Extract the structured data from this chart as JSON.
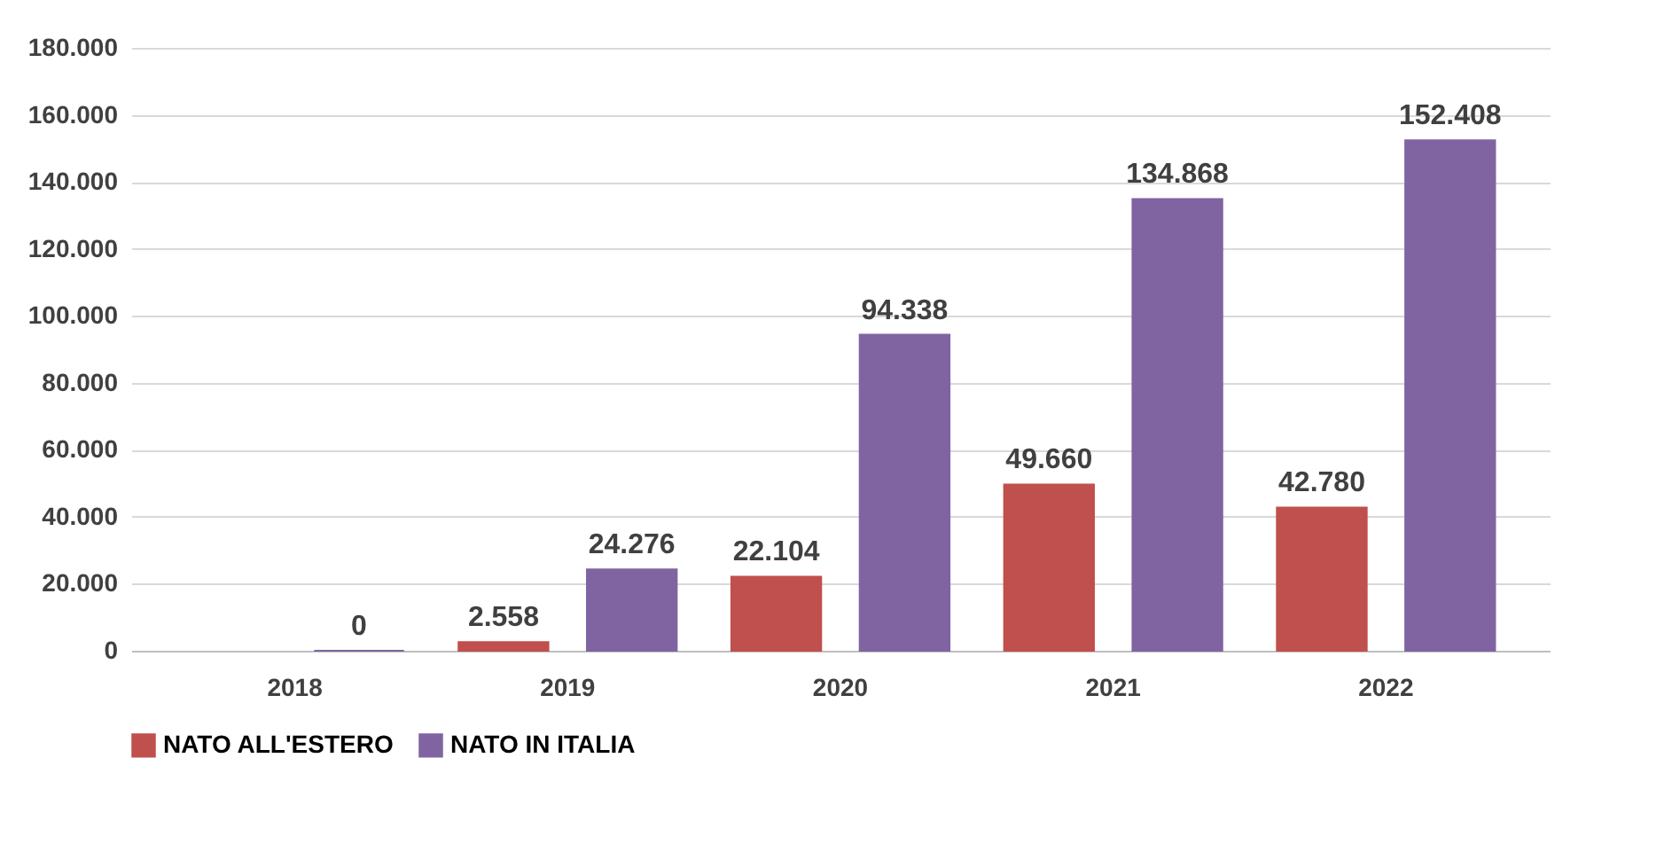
{
  "chart_data": {
    "type": "bar",
    "categories": [
      "2018",
      "2019",
      "2020",
      "2021",
      "2022"
    ],
    "series": [
      {
        "name": "NATO ALL'ESTERO",
        "color": "#c0504d",
        "values": [
          null,
          2558,
          22104,
          49660,
          42780
        ],
        "value_labels": [
          null,
          "2.558",
          "22.104",
          "49.660",
          "42.780"
        ]
      },
      {
        "name": "NATO IN ITALIA",
        "color": "#8064a2",
        "values": [
          0,
          24276,
          94338,
          134868,
          152408
        ],
        "value_labels": [
          "0",
          "24.276",
          "94.338",
          "134.868",
          "152.408"
        ]
      }
    ],
    "ylim": [
      0,
      180000
    ],
    "yticks": [
      {
        "value": 0,
        "label": "0"
      },
      {
        "value": 20000,
        "label": "20.000"
      },
      {
        "value": 40000,
        "label": "40.000"
      },
      {
        "value": 60000,
        "label": "60.000"
      },
      {
        "value": 80000,
        "label": "80.000"
      },
      {
        "value": 100000,
        "label": "100.000"
      },
      {
        "value": 120000,
        "label": "120.000"
      },
      {
        "value": 140000,
        "label": "140.000"
      },
      {
        "value": 160000,
        "label": "160.000"
      },
      {
        "value": 180000,
        "label": "180.000"
      }
    ],
    "grid": "y",
    "legend": "bottom"
  }
}
